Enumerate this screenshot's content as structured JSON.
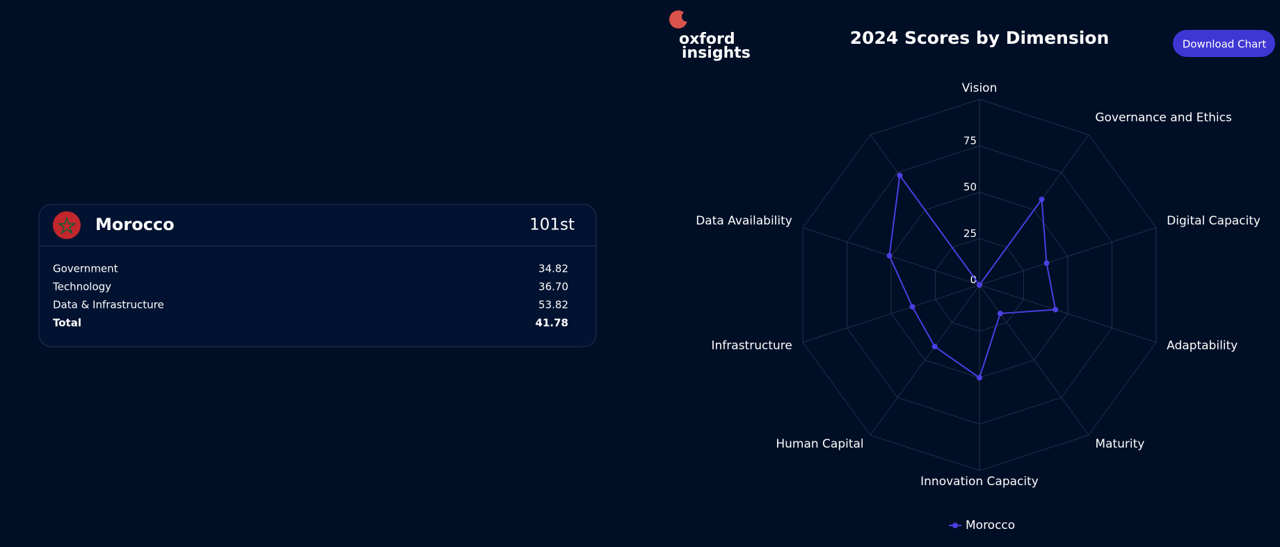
{
  "header": {
    "logo_line1": "oxford",
    "logo_line2": "insights",
    "button": "Download Chart"
  },
  "card": {
    "country": "Morocco",
    "rank": "101st",
    "rows": [
      [
        "Government",
        "34.82"
      ],
      [
        "Technology",
        "36.70"
      ],
      [
        "Data & Infrastructure",
        "53.82"
      ],
      [
        "Total",
        "41.78"
      ]
    ]
  },
  "chart_data": {
    "type": "radar",
    "title": "2024 Scores by Dimension",
    "categories": [
      "Vision",
      "Governance and Ethics",
      "Digital Capacity",
      "Adaptability",
      "Maturity",
      "Innovation Capacity",
      "Human Capital",
      "Infrastructure",
      "Data Availability",
      null
    ],
    "series": [
      {
        "name": "Morocco",
        "color": "#4b3fe3",
        "values": [
          0,
          57,
          38,
          43,
          19,
          50,
          41,
          38,
          51,
          73
        ]
      }
    ],
    "ylim": [
      0,
      100
    ],
    "yticks": [
      0,
      25,
      50,
      75
    ],
    "grid": true
  }
}
